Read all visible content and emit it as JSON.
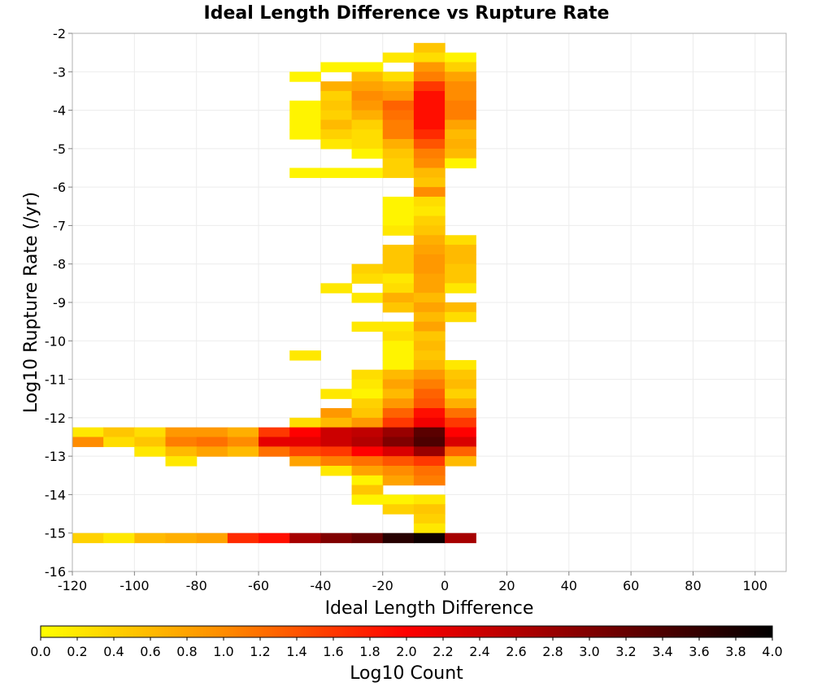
{
  "chart_data": {
    "type": "heatmap",
    "title": "Ideal Length Difference vs Rupture Rate",
    "xlabel": "Ideal Length Difference",
    "ylabel": "Log10 Rupture Rate (/yr)",
    "xlim": [
      -120,
      110
    ],
    "ylim": [
      -16,
      -2
    ],
    "xticks": [
      -120,
      -100,
      -80,
      -60,
      -40,
      -20,
      0,
      20,
      40,
      60,
      80,
      100
    ],
    "yticks": [
      -2,
      -3,
      -4,
      -5,
      -6,
      -7,
      -8,
      -9,
      -10,
      -11,
      -12,
      -13,
      -14,
      -15,
      -16
    ],
    "x_bin_width": 10,
    "y_bin_height": 0.25,
    "grid": true,
    "colorbar": {
      "label": "Log10 Count",
      "min": 0.0,
      "max": 4.0,
      "ticks": [
        "0.0",
        "0.2",
        "0.4",
        "0.6",
        "0.8",
        "1.0",
        "1.2",
        "1.4",
        "1.6",
        "1.8",
        "2.0",
        "2.2",
        "2.4",
        "2.6",
        "2.8",
        "3.0",
        "3.2",
        "3.4",
        "3.6",
        "3.8",
        "4.0"
      ],
      "placement": "bottom",
      "colors": [
        "#ffff00",
        "#ff8c00",
        "#ff0000",
        "#800000",
        "#000000"
      ]
    },
    "cells": [
      {
        "x0": -10,
        "y": -2.25,
        "v": 0.5
      },
      {
        "x0": -20,
        "y": -2.5,
        "v": 0.2
      },
      {
        "x0": -10,
        "y": -2.5,
        "v": 0.3
      },
      {
        "x0": 0,
        "y": -2.5,
        "v": 0.1
      },
      {
        "x0": -40,
        "y": -2.75,
        "v": 0.1
      },
      {
        "x0": -30,
        "y": -2.75,
        "v": 0.1
      },
      {
        "x0": -10,
        "y": -2.75,
        "v": 0.9
      },
      {
        "x0": 0,
        "y": -2.75,
        "v": 0.4
      },
      {
        "x0": -50,
        "y": -3.0,
        "v": 0.1
      },
      {
        "x0": -30,
        "y": -3.0,
        "v": 0.6
      },
      {
        "x0": -20,
        "y": -3.0,
        "v": 0.3
      },
      {
        "x0": -10,
        "y": -3.0,
        "v": 1.1
      },
      {
        "x0": 0,
        "y": -3.0,
        "v": 0.8
      },
      {
        "x0": -40,
        "y": -3.25,
        "v": 0.7
      },
      {
        "x0": -30,
        "y": -3.25,
        "v": 0.8
      },
      {
        "x0": -20,
        "y": -3.25,
        "v": 0.7
      },
      {
        "x0": -10,
        "y": -3.25,
        "v": 1.6
      },
      {
        "x0": 0,
        "y": -3.25,
        "v": 1.0
      },
      {
        "x0": -40,
        "y": -3.5,
        "v": 0.4
      },
      {
        "x0": -30,
        "y": -3.5,
        "v": 1.0
      },
      {
        "x0": -20,
        "y": -3.5,
        "v": 0.9
      },
      {
        "x0": -10,
        "y": -3.5,
        "v": 1.9
      },
      {
        "x0": 0,
        "y": -3.5,
        "v": 1.0
      },
      {
        "x0": -50,
        "y": -3.75,
        "v": 0.1
      },
      {
        "x0": -40,
        "y": -3.75,
        "v": 0.5
      },
      {
        "x0": -30,
        "y": -3.75,
        "v": 0.9
      },
      {
        "x0": -20,
        "y": -3.75,
        "v": 1.3
      },
      {
        "x0": -10,
        "y": -3.75,
        "v": 1.9
      },
      {
        "x0": 0,
        "y": -3.75,
        "v": 1.1
      },
      {
        "x0": -50,
        "y": -4.0,
        "v": 0.1
      },
      {
        "x0": -40,
        "y": -4.0,
        "v": 0.4
      },
      {
        "x0": -30,
        "y": -4.0,
        "v": 0.7
      },
      {
        "x0": -20,
        "y": -4.0,
        "v": 1.2
      },
      {
        "x0": -10,
        "y": -4.0,
        "v": 1.9
      },
      {
        "x0": 0,
        "y": -4.0,
        "v": 1.1
      },
      {
        "x0": -50,
        "y": -4.25,
        "v": 0.1
      },
      {
        "x0": -40,
        "y": -4.25,
        "v": 0.6
      },
      {
        "x0": -30,
        "y": -4.25,
        "v": 0.4
      },
      {
        "x0": -20,
        "y": -4.25,
        "v": 1.1
      },
      {
        "x0": -10,
        "y": -4.25,
        "v": 1.9
      },
      {
        "x0": 0,
        "y": -4.25,
        "v": 0.8
      },
      {
        "x0": -50,
        "y": -4.5,
        "v": 0.1
      },
      {
        "x0": -40,
        "y": -4.5,
        "v": 0.4
      },
      {
        "x0": -30,
        "y": -4.5,
        "v": 0.3
      },
      {
        "x0": -20,
        "y": -4.5,
        "v": 1.1
      },
      {
        "x0": -10,
        "y": -4.5,
        "v": 1.7
      },
      {
        "x0": 0,
        "y": -4.5,
        "v": 0.6
      },
      {
        "x0": -40,
        "y": -4.75,
        "v": 0.2
      },
      {
        "x0": -30,
        "y": -4.75,
        "v": 0.3
      },
      {
        "x0": -20,
        "y": -4.75,
        "v": 0.7
      },
      {
        "x0": -10,
        "y": -4.75,
        "v": 1.4
      },
      {
        "x0": 0,
        "y": -4.75,
        "v": 0.7
      },
      {
        "x0": -30,
        "y": -5.0,
        "v": 0.1
      },
      {
        "x0": -20,
        "y": -5.0,
        "v": 0.5
      },
      {
        "x0": -10,
        "y": -5.0,
        "v": 1.1
      },
      {
        "x0": 0,
        "y": -5.0,
        "v": 0.6
      },
      {
        "x0": -20,
        "y": -5.25,
        "v": 0.4
      },
      {
        "x0": -10,
        "y": -5.25,
        "v": 1.0
      },
      {
        "x0": 0,
        "y": -5.25,
        "v": 0.1
      },
      {
        "x0": -50,
        "y": -5.5,
        "v": 0.1
      },
      {
        "x0": -40,
        "y": -5.5,
        "v": 0.1
      },
      {
        "x0": -30,
        "y": -5.5,
        "v": 0.1
      },
      {
        "x0": -20,
        "y": -5.5,
        "v": 0.4
      },
      {
        "x0": -10,
        "y": -5.5,
        "v": 0.6
      },
      {
        "x0": -10,
        "y": -5.75,
        "v": 0.5
      },
      {
        "x0": -10,
        "y": -6.0,
        "v": 1.0
      },
      {
        "x0": -20,
        "y": -6.25,
        "v": 0.1
      },
      {
        "x0": -10,
        "y": -6.25,
        "v": 0.3
      },
      {
        "x0": -20,
        "y": -6.5,
        "v": 0.1
      },
      {
        "x0": -10,
        "y": -6.5,
        "v": 0.2
      },
      {
        "x0": -20,
        "y": -6.75,
        "v": 0.1
      },
      {
        "x0": -10,
        "y": -6.75,
        "v": 0.4
      },
      {
        "x0": -20,
        "y": -7.0,
        "v": 0.2
      },
      {
        "x0": -10,
        "y": -7.0,
        "v": 0.5
      },
      {
        "x0": -10,
        "y": -7.25,
        "v": 0.7
      },
      {
        "x0": 0,
        "y": -7.25,
        "v": 0.3
      },
      {
        "x0": -20,
        "y": -7.5,
        "v": 0.5
      },
      {
        "x0": -10,
        "y": -7.5,
        "v": 0.8
      },
      {
        "x0": 0,
        "y": -7.5,
        "v": 0.6
      },
      {
        "x0": -20,
        "y": -7.75,
        "v": 0.5
      },
      {
        "x0": -10,
        "y": -7.75,
        "v": 0.9
      },
      {
        "x0": 0,
        "y": -7.75,
        "v": 0.6
      },
      {
        "x0": -30,
        "y": -8.0,
        "v": 0.4
      },
      {
        "x0": -20,
        "y": -8.0,
        "v": 0.5
      },
      {
        "x0": -10,
        "y": -8.0,
        "v": 0.9
      },
      {
        "x0": 0,
        "y": -8.0,
        "v": 0.5
      },
      {
        "x0": -30,
        "y": -8.25,
        "v": 0.3
      },
      {
        "x0": -20,
        "y": -8.25,
        "v": 0.2
      },
      {
        "x0": -10,
        "y": -8.25,
        "v": 0.8
      },
      {
        "x0": 0,
        "y": -8.25,
        "v": 0.5
      },
      {
        "x0": -40,
        "y": -8.5,
        "v": 0.2
      },
      {
        "x0": -20,
        "y": -8.5,
        "v": 0.3
      },
      {
        "x0": -10,
        "y": -8.5,
        "v": 0.8
      },
      {
        "x0": 0,
        "y": -8.5,
        "v": 0.2
      },
      {
        "x0": -30,
        "y": -8.75,
        "v": 0.2
      },
      {
        "x0": -20,
        "y": -8.75,
        "v": 0.7
      },
      {
        "x0": -10,
        "y": -8.75,
        "v": 0.6
      },
      {
        "x0": -20,
        "y": -9.0,
        "v": 0.5
      },
      {
        "x0": -10,
        "y": -9.0,
        "v": 0.8
      },
      {
        "x0": 0,
        "y": -9.0,
        "v": 0.6
      },
      {
        "x0": -10,
        "y": -9.25,
        "v": 0.6
      },
      {
        "x0": 0,
        "y": -9.25,
        "v": 0.3
      },
      {
        "x0": -30,
        "y": -9.5,
        "v": 0.2
      },
      {
        "x0": -20,
        "y": -9.5,
        "v": 0.2
      },
      {
        "x0": -10,
        "y": -9.5,
        "v": 0.8
      },
      {
        "x0": -20,
        "y": -9.75,
        "v": 0.3
      },
      {
        "x0": -10,
        "y": -9.75,
        "v": 0.5
      },
      {
        "x0": -20,
        "y": -10.0,
        "v": 0.1
      },
      {
        "x0": -10,
        "y": -10.0,
        "v": 0.6
      },
      {
        "x0": -50,
        "y": -10.25,
        "v": 0.2
      },
      {
        "x0": -20,
        "y": -10.25,
        "v": 0.1
      },
      {
        "x0": -10,
        "y": -10.25,
        "v": 0.5
      },
      {
        "x0": -20,
        "y": -10.5,
        "v": 0.1
      },
      {
        "x0": -10,
        "y": -10.5,
        "v": 0.6
      },
      {
        "x0": 0,
        "y": -10.5,
        "v": 0.2
      },
      {
        "x0": -30,
        "y": -10.75,
        "v": 0.3
      },
      {
        "x0": -20,
        "y": -10.75,
        "v": 0.6
      },
      {
        "x0": -10,
        "y": -10.75,
        "v": 0.9
      },
      {
        "x0": 0,
        "y": -10.75,
        "v": 0.5
      },
      {
        "x0": -30,
        "y": -11.0,
        "v": 0.2
      },
      {
        "x0": -20,
        "y": -11.0,
        "v": 0.8
      },
      {
        "x0": -10,
        "y": -11.0,
        "v": 1.1
      },
      {
        "x0": 0,
        "y": -11.0,
        "v": 0.6
      },
      {
        "x0": -40,
        "y": -11.25,
        "v": 0.2
      },
      {
        "x0": -30,
        "y": -11.25,
        "v": 0.1
      },
      {
        "x0": -20,
        "y": -11.25,
        "v": 0.6
      },
      {
        "x0": -10,
        "y": -11.25,
        "v": 1.3
      },
      {
        "x0": 0,
        "y": -11.25,
        "v": 0.4
      },
      {
        "x0": -30,
        "y": -11.5,
        "v": 0.4
      },
      {
        "x0": -20,
        "y": -11.5,
        "v": 0.9
      },
      {
        "x0": -10,
        "y": -11.5,
        "v": 1.4
      },
      {
        "x0": 0,
        "y": -11.5,
        "v": 0.7
      },
      {
        "x0": -40,
        "y": -11.75,
        "v": 0.9
      },
      {
        "x0": -30,
        "y": -11.75,
        "v": 0.5
      },
      {
        "x0": -20,
        "y": -11.75,
        "v": 1.3
      },
      {
        "x0": -10,
        "y": -11.75,
        "v": 1.9
      },
      {
        "x0": 0,
        "y": -11.75,
        "v": 1.2
      },
      {
        "x0": -50,
        "y": -12.0,
        "v": 0.3
      },
      {
        "x0": -40,
        "y": -12.0,
        "v": 0.6
      },
      {
        "x0": -30,
        "y": -12.0,
        "v": 0.9
      },
      {
        "x0": -20,
        "y": -12.0,
        "v": 1.6
      },
      {
        "x0": -10,
        "y": -12.0,
        "v": 2.1
      },
      {
        "x0": 0,
        "y": -12.0,
        "v": 1.6
      },
      {
        "x0": -120,
        "y": -12.25,
        "v": 0.2
      },
      {
        "x0": -110,
        "y": -12.25,
        "v": 0.5
      },
      {
        "x0": -100,
        "y": -12.25,
        "v": 0.3
      },
      {
        "x0": -90,
        "y": -12.25,
        "v": 0.9
      },
      {
        "x0": -80,
        "y": -12.25,
        "v": 0.9
      },
      {
        "x0": -70,
        "y": -12.25,
        "v": 0.7
      },
      {
        "x0": -60,
        "y": -12.25,
        "v": 1.6
      },
      {
        "x0": -50,
        "y": -12.25,
        "v": 2.0
      },
      {
        "x0": -40,
        "y": -12.25,
        "v": 2.4
      },
      {
        "x0": -30,
        "y": -12.25,
        "v": 2.5
      },
      {
        "x0": -20,
        "y": -12.25,
        "v": 2.8
      },
      {
        "x0": -10,
        "y": -12.25,
        "v": 3.3
      },
      {
        "x0": 0,
        "y": -12.25,
        "v": 2.0
      },
      {
        "x0": -120,
        "y": -12.5,
        "v": 1.0
      },
      {
        "x0": -110,
        "y": -12.5,
        "v": 0.3
      },
      {
        "x0": -100,
        "y": -12.5,
        "v": 0.5
      },
      {
        "x0": -90,
        "y": -12.5,
        "v": 1.1
      },
      {
        "x0": -80,
        "y": -12.5,
        "v": 1.2
      },
      {
        "x0": -70,
        "y": -12.5,
        "v": 1.0
      },
      {
        "x0": -60,
        "y": -12.5,
        "v": 2.2
      },
      {
        "x0": -50,
        "y": -12.5,
        "v": 2.2
      },
      {
        "x0": -40,
        "y": -12.5,
        "v": 2.4
      },
      {
        "x0": -30,
        "y": -12.5,
        "v": 2.6
      },
      {
        "x0": -20,
        "y": -12.5,
        "v": 3.0
      },
      {
        "x0": -10,
        "y": -12.5,
        "v": 3.4
      },
      {
        "x0": 0,
        "y": -12.5,
        "v": 2.3
      },
      {
        "x0": -100,
        "y": -12.75,
        "v": 0.2
      },
      {
        "x0": -90,
        "y": -12.75,
        "v": 0.6
      },
      {
        "x0": -80,
        "y": -12.75,
        "v": 0.8
      },
      {
        "x0": -70,
        "y": -12.75,
        "v": 0.6
      },
      {
        "x0": -60,
        "y": -12.75,
        "v": 1.2
      },
      {
        "x0": -50,
        "y": -12.75,
        "v": 1.5
      },
      {
        "x0": -40,
        "y": -12.75,
        "v": 1.6
      },
      {
        "x0": -30,
        "y": -12.75,
        "v": 2.0
      },
      {
        "x0": -20,
        "y": -12.75,
        "v": 2.3
      },
      {
        "x0": -10,
        "y": -12.75,
        "v": 2.8
      },
      {
        "x0": 0,
        "y": -12.75,
        "v": 1.3
      },
      {
        "x0": -90,
        "y": -13.0,
        "v": 0.2
      },
      {
        "x0": -50,
        "y": -13.0,
        "v": 0.8
      },
      {
        "x0": -40,
        "y": -13.0,
        "v": 1.1
      },
      {
        "x0": -30,
        "y": -13.0,
        "v": 1.2
      },
      {
        "x0": -20,
        "y": -13.0,
        "v": 1.4
      },
      {
        "x0": -10,
        "y": -13.0,
        "v": 1.6
      },
      {
        "x0": 0,
        "y": -13.0,
        "v": 0.6
      },
      {
        "x0": -40,
        "y": -13.25,
        "v": 0.2
      },
      {
        "x0": -30,
        "y": -13.25,
        "v": 0.8
      },
      {
        "x0": -20,
        "y": -13.25,
        "v": 1.0
      },
      {
        "x0": -10,
        "y": -13.25,
        "v": 1.2
      },
      {
        "x0": -30,
        "y": -13.5,
        "v": 0.1
      },
      {
        "x0": -20,
        "y": -13.5,
        "v": 0.8
      },
      {
        "x0": -10,
        "y": -13.5,
        "v": 1.1
      },
      {
        "x0": -30,
        "y": -13.75,
        "v": 0.5
      },
      {
        "x0": -30,
        "y": -14.0,
        "v": 0.1
      },
      {
        "x0": -20,
        "y": -14.0,
        "v": 0.1
      },
      {
        "x0": -10,
        "y": -14.0,
        "v": 0.2
      },
      {
        "x0": -20,
        "y": -14.25,
        "v": 0.4
      },
      {
        "x0": -10,
        "y": -14.25,
        "v": 0.5
      },
      {
        "x0": -10,
        "y": -14.5,
        "v": 0.4
      },
      {
        "x0": -10,
        "y": -14.75,
        "v": 0.2
      },
      {
        "x0": -120,
        "y": -15.0,
        "v": 0.4
      },
      {
        "x0": -110,
        "y": -15.0,
        "v": 0.2
      },
      {
        "x0": -100,
        "y": -15.0,
        "v": 0.6
      },
      {
        "x0": -90,
        "y": -15.0,
        "v": 0.7
      },
      {
        "x0": -80,
        "y": -15.0,
        "v": 0.8
      },
      {
        "x0": -70,
        "y": -15.0,
        "v": 1.7
      },
      {
        "x0": -60,
        "y": -15.0,
        "v": 1.9
      },
      {
        "x0": -50,
        "y": -15.0,
        "v": 2.7
      },
      {
        "x0": -40,
        "y": -15.0,
        "v": 3.0
      },
      {
        "x0": -30,
        "y": -15.0,
        "v": 3.2
      },
      {
        "x0": -20,
        "y": -15.0,
        "v": 3.7
      },
      {
        "x0": -10,
        "y": -15.0,
        "v": 3.9
      },
      {
        "x0": 0,
        "y": -15.0,
        "v": 2.7
      }
    ]
  }
}
